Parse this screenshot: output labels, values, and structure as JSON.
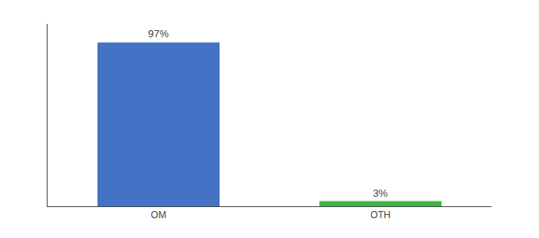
{
  "chart_data": {
    "type": "bar",
    "categories": [
      "OM",
      "OTH"
    ],
    "values": [
      97,
      3
    ],
    "value_labels": [
      "97%",
      "3%"
    ],
    "colors": [
      "#4472c4",
      "#3cb544"
    ],
    "data_labels": true,
    "ylim": [
      0,
      108
    ],
    "grid": false,
    "tick_labels": "x"
  }
}
